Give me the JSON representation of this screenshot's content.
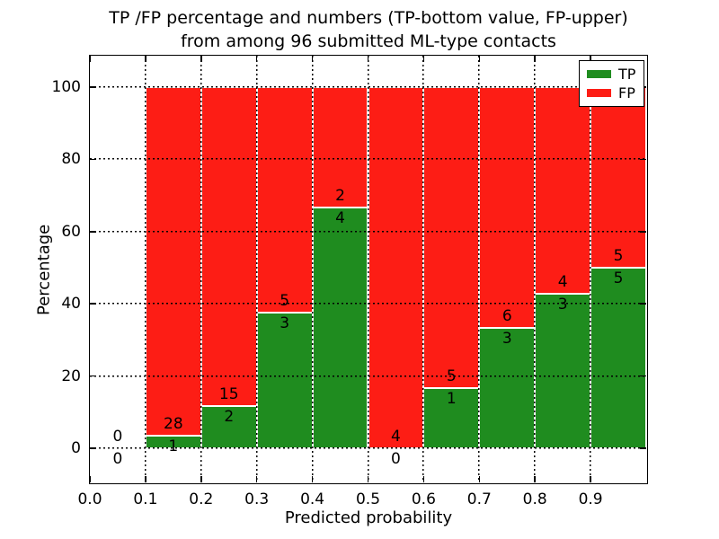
{
  "title": {
    "line1": "TP /FP percentage and numbers (TP-bottom value, FP-upper)",
    "line2": "from among 96 submitted ML-type contacts"
  },
  "axes": {
    "xlabel": "Predicted probability",
    "ylabel": "Percentage",
    "xtick_labels": [
      "0.0",
      "0.1",
      "0.2",
      "0.3",
      "0.4",
      "0.5",
      "0.6",
      "0.7",
      "0.8",
      "0.9"
    ],
    "ytick_labels": [
      "0",
      "20",
      "40",
      "60",
      "80",
      "100"
    ],
    "xlim": [
      0.0,
      1.0
    ],
    "ylim": [
      -10,
      109
    ],
    "grid": "dotted"
  },
  "legend": {
    "position": "upper right",
    "items": [
      {
        "label": "TP",
        "color": "#1f8c1f"
      },
      {
        "label": "FP",
        "color": "#fd1d15"
      }
    ]
  },
  "colors": {
    "tp": "#1f8c1f",
    "fp": "#fd1d15",
    "bar_edge": "#ffffff",
    "grid": "#000000",
    "text": "#000000"
  },
  "chart_data": {
    "type": "bar",
    "stacked": true,
    "normalized_to": 100,
    "total_contacts": 96,
    "title": "TP /FP percentage and numbers (TP-bottom value, FP-upper) from among 96 submitted ML-type contacts",
    "xlabel": "Predicted probability",
    "ylabel": "Percentage",
    "bin_width": 0.1,
    "bins": [
      {
        "x_range": [
          0.0,
          0.1
        ],
        "tp": 0,
        "fp": 0,
        "tp_pct": null,
        "fp_pct": null
      },
      {
        "x_range": [
          0.1,
          0.2
        ],
        "tp": 1,
        "fp": 28,
        "tp_pct": 3.4,
        "fp_pct": 96.6
      },
      {
        "x_range": [
          0.2,
          0.3
        ],
        "tp": 2,
        "fp": 15,
        "tp_pct": 11.8,
        "fp_pct": 88.2
      },
      {
        "x_range": [
          0.3,
          0.4
        ],
        "tp": 3,
        "fp": 5,
        "tp_pct": 37.5,
        "fp_pct": 62.5
      },
      {
        "x_range": [
          0.4,
          0.5
        ],
        "tp": 4,
        "fp": 2,
        "tp_pct": 66.7,
        "fp_pct": 33.3
      },
      {
        "x_range": [
          0.5,
          0.6
        ],
        "tp": 0,
        "fp": 4,
        "tp_pct": 0.0,
        "fp_pct": 100.0
      },
      {
        "x_range": [
          0.6,
          0.7
        ],
        "tp": 1,
        "fp": 5,
        "tp_pct": 16.7,
        "fp_pct": 83.3
      },
      {
        "x_range": [
          0.7,
          0.8
        ],
        "tp": 3,
        "fp": 6,
        "tp_pct": 33.3,
        "fp_pct": 66.7
      },
      {
        "x_range": [
          0.8,
          0.9
        ],
        "tp": 3,
        "fp": 4,
        "tp_pct": 42.9,
        "fp_pct": 57.1
      },
      {
        "x_range": [
          0.9,
          1.0
        ],
        "tp": 5,
        "fp": 5,
        "tp_pct": 50.0,
        "fp_pct": 50.0
      }
    ]
  }
}
